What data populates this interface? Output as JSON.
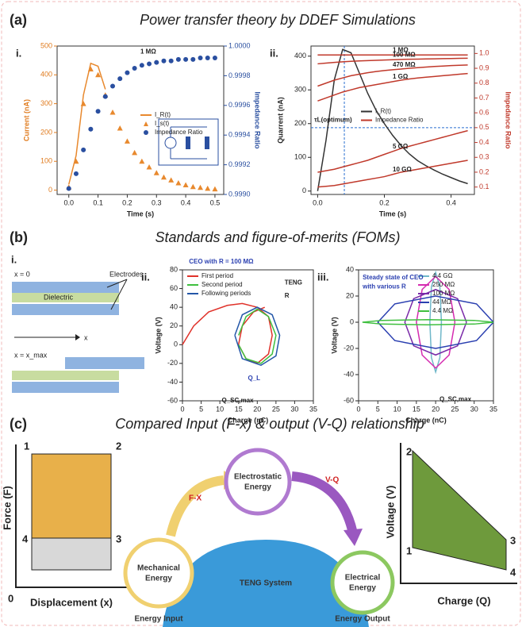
{
  "panels": [
    {
      "label": "(a)",
      "title": "Power transfer theory by DDEF Simulations"
    },
    {
      "label": "(b)",
      "title": "Standards and figure-of-merits (FOMs)"
    },
    {
      "label": "(c)",
      "title": "Compared Input (F-x) & output (V-Q) relationship"
    }
  ],
  "chart_data": [
    {
      "type": "line",
      "panel_label": "i.",
      "xlabel": "Time (s)",
      "ylabel": "Current (nA)",
      "y2label": "Impedance Ratio",
      "ycolor": "#e07b1e",
      "y2color": "#2a4fa0",
      "legend": "center right",
      "xlim": [
        -0.04,
        0.53
      ],
      "xticks": [
        {
          "value": 0,
          "label": "0.0"
        },
        0.1,
        0.2,
        0.3,
        0.4,
        0.5
      ],
      "ylim": [
        -15,
        500
      ],
      "yticks": [
        0,
        100,
        200,
        300,
        400,
        500
      ],
      "y2lim": [
        0.999,
        1
      ],
      "y2ticks": [
        {
          "value": 0.999,
          "label": "0.9990"
        },
        0.9992,
        0.9994,
        0.9996,
        0.9998,
        {
          "value": 1,
          "label": "1.0000"
        }
      ],
      "x": [
        0,
        0.025,
        0.05,
        0.075,
        0.1,
        0.125,
        0.15,
        0.175,
        0.2,
        0.225,
        0.25,
        0.275,
        0.3,
        0.325,
        0.35,
        0.375,
        0.4,
        0.425,
        0.45,
        0.475,
        0.5
      ],
      "series": [
        {
          "name": "I_R(t)",
          "color": "#e8892e",
          "marker": "line",
          "values": [
            20,
            120,
            330,
            440,
            430,
            350,
            null,
            null,
            null,
            null,
            null,
            null,
            null,
            null,
            null,
            null,
            null,
            null,
            null,
            null,
            null
          ]
        },
        {
          "name": "I_s(t)",
          "color": "#e8892e",
          "marker": "triangle",
          "values": [
            10,
            100,
            300,
            420,
            400,
            330,
            270,
            215,
            170,
            130,
            100,
            80,
            60,
            45,
            35,
            25,
            18,
            12,
            9,
            6,
            4
          ]
        },
        {
          "name": "Impedance Ratio",
          "color": "#2a4fa0",
          "marker": "circle",
          "axis": "y2",
          "values": [
            0.99904,
            0.99914,
            0.9993,
            0.99944,
            0.99956,
            0.99966,
            0.99973,
            0.99978,
            0.99982,
            0.99985,
            0.99987,
            0.99988,
            0.99989,
            0.9999,
            0.9999,
            0.99991,
            0.99991,
            0.99991,
            0.99992,
            0.99992,
            0.99992
          ]
        }
      ],
      "annotations": [
        "1 MΩ"
      ]
    },
    {
      "type": "line",
      "panel_label": "ii.",
      "xlabel": "Time (s)",
      "ylabel": "Quarrent (nA)",
      "y2label": "Impedance Ratio",
      "ycolor": "#222222",
      "y2color": "#c0392b",
      "legend": "center",
      "legend_extra": "Impedance Ratio",
      "xlim": [
        -0.02,
        0.47
      ],
      "xticks": [
        {
          "value": 0,
          "label": "0.0"
        },
        0.2,
        0.4
      ],
      "ylim": [
        -10,
        430
      ],
      "yticks": [
        0,
        100,
        200,
        300,
        400
      ],
      "y2lim": [
        0.05,
        1.05
      ],
      "y2ticks": [
        0.1,
        0.2,
        0.3,
        0.4,
        0.5,
        0.6,
        0.7,
        0.8,
        0.9,
        {
          "value": 1,
          "label": "1.0"
        }
      ],
      "x": [
        0,
        0.025,
        0.05,
        0.075,
        0.1,
        0.125,
        0.15,
        0.175,
        0.2,
        0.225,
        0.25,
        0.275,
        0.3,
        0.325,
        0.35,
        0.375,
        0.4,
        0.425,
        0.45
      ],
      "reference_lines": {
        "x": 0.08,
        "y2": 0.5
      },
      "series": [
        {
          "name": "I_R(t)",
          "color": "#333333",
          "marker": "line",
          "values": [
            0,
            150,
            330,
            420,
            410,
            350,
            290,
            240,
            200,
            165,
            135,
            110,
            90,
            75,
            62,
            50,
            40,
            30,
            22
          ]
        },
        {
          "label": "1 MΩ",
          "color": "#c0392b",
          "marker": "line",
          "axis": "y2",
          "values": [
            0.99,
            0.99,
            0.99,
            0.99,
            0.99,
            0.99,
            0.99,
            0.99,
            0.99,
            0.99,
            0.99,
            0.99,
            0.99,
            0.99,
            0.99,
            0.99,
            0.99,
            0.99,
            0.99
          ]
        },
        {
          "label": "100 MΩ",
          "color": "#c0392b",
          "marker": "line",
          "axis": "y2",
          "values": [
            0.93,
            0.935,
            0.94,
            0.944,
            0.947,
            0.95,
            0.952,
            0.954,
            0.956,
            0.958,
            0.96,
            0.961,
            0.962,
            0.963,
            0.964,
            0.965,
            0.966,
            0.967,
            0.968
          ]
        },
        {
          "label": "470 MΩ",
          "color": "#c0392b",
          "marker": "line",
          "axis": "y2",
          "values": [
            0.78,
            0.8,
            0.82,
            0.835,
            0.85,
            0.86,
            0.87,
            0.878,
            0.885,
            0.89,
            0.895,
            0.9,
            0.904,
            0.908,
            0.912,
            0.915,
            0.918,
            0.92,
            0.922
          ]
        },
        {
          "label": "1 GΩ",
          "color": "#c0392b",
          "marker": "line",
          "axis": "y2",
          "values": [
            0.68,
            0.7,
            0.72,
            0.74,
            0.755,
            0.77,
            0.78,
            0.79,
            0.8,
            0.81,
            0.82,
            0.828,
            0.835,
            0.84,
            0.845,
            0.85,
            0.855,
            0.86,
            0.865
          ]
        },
        {
          "label": "5 GΩ",
          "color": "#c0392b",
          "marker": "line",
          "axis": "y2",
          "values": [
            0.2,
            0.21,
            0.22,
            0.235,
            0.25,
            0.265,
            0.28,
            0.3,
            0.32,
            0.34,
            0.36,
            0.375,
            0.39,
            0.405,
            0.42,
            0.435,
            0.45,
            0.465,
            0.48
          ]
        },
        {
          "label": "10 GΩ",
          "color": "#c0392b",
          "marker": "line",
          "axis": "y2",
          "values": [
            0.1,
            0.105,
            0.11,
            0.12,
            0.13,
            0.14,
            0.15,
            0.16,
            0.17,
            0.185,
            0.2,
            0.21,
            0.22,
            0.23,
            0.24,
            0.25,
            0.26,
            0.27,
            0.28
          ]
        }
      ],
      "annotations": [
        "τL(optimum)"
      ]
    },
    {
      "type": "line",
      "panel_label": "ii.",
      "xlabel": "Charge (nC)",
      "ylabel": "Voltage (V)",
      "ycolor": "#222222",
      "legend": "upper left",
      "xlim": [
        0,
        35
      ],
      "xticks": [
        0,
        5,
        10,
        15,
        20,
        25,
        30,
        35
      ],
      "ylim": [
        -60,
        80
      ],
      "yticks": [
        -60,
        -40,
        -20,
        0,
        20,
        40,
        60,
        80
      ],
      "series": [
        {
          "name": "First period",
          "color": "#e0322a",
          "marker": "line",
          "x": [
            0,
            3,
            7,
            12,
            16,
            20,
            23,
            24,
            23,
            20,
            17,
            15,
            16,
            19,
            22
          ],
          "values": [
            0,
            20,
            35,
            42,
            44,
            40,
            30,
            10,
            -10,
            -20,
            -15,
            0,
            20,
            35,
            40
          ]
        },
        {
          "name": "Second period",
          "color": "#3fbf3f",
          "marker": "line",
          "x": [
            15,
            17,
            20,
            23,
            25,
            24,
            21,
            17,
            15
          ],
          "values": [
            10,
            30,
            38,
            30,
            10,
            -10,
            -20,
            -15,
            0
          ]
        },
        {
          "name": "Following periods",
          "color": "#2457a8",
          "marker": "line",
          "x": [
            14,
            16,
            20,
            24,
            26,
            25,
            21,
            16,
            14
          ],
          "values": [
            10,
            32,
            40,
            32,
            10,
            -12,
            -22,
            -15,
            10
          ]
        }
      ],
      "annotations": [
        "CEO with R = 100 MΩ",
        "Q_L",
        "Q_SC,max",
        "TENG",
        "R"
      ]
    },
    {
      "type": "line",
      "panel_label": "iii.",
      "xlabel": "Charge (nC)",
      "ylabel": "Voltage (V)",
      "ycolor": "#222222",
      "legend": "upper right",
      "xlim": [
        0,
        35
      ],
      "xticks": [
        0,
        5,
        10,
        15,
        20,
        25,
        30,
        35
      ],
      "ylim": [
        -60,
        40
      ],
      "yticks": [
        -60,
        -40,
        -20,
        0,
        20,
        40
      ],
      "series": [
        {
          "name": "4.4 GΩ",
          "color": "#6fb7c9",
          "marker": "line",
          "x": [
            21.5,
            21.1,
            20,
            18.9,
            18.5,
            18.9,
            20,
            21.1,
            21.5
          ],
          "values": [
            0,
            27,
            38,
            27,
            0,
            -27,
            -38,
            -27,
            0
          ]
        },
        {
          "name": "250 MΩ",
          "color": "#d52bb0",
          "marker": "line",
          "x": [
            25,
            23.5,
            20,
            16.5,
            15,
            16.5,
            20,
            23.5,
            25
          ],
          "values": [
            0,
            25,
            35,
            25,
            0,
            -25,
            -35,
            -25,
            0
          ]
        },
        {
          "name": "100 MΩ",
          "color": "#7a2aa8",
          "marker": "line",
          "x": [
            28,
            25.7,
            20,
            14.3,
            12,
            14.3,
            20,
            25.7,
            28
          ],
          "values": [
            0,
            18,
            25,
            18,
            0,
            -18,
            -25,
            -18,
            0
          ]
        },
        {
          "name": "44 MΩ",
          "color": "#2a3fb0",
          "marker": "line",
          "x": [
            35,
            30.6,
            20,
            9.4,
            5,
            9.4,
            20,
            30.6,
            35
          ],
          "values": [
            0,
            14,
            20,
            14,
            0,
            -14,
            -20,
            -14,
            0
          ]
        },
        {
          "name": "4.4 MΩ",
          "color": "#3fbf3f",
          "marker": "line",
          "x": [
            35,
            30,
            18,
            6,
            1,
            6,
            18,
            30,
            35
          ],
          "values": [
            0,
            1.4,
            2,
            1.4,
            0,
            -1.4,
            -2,
            -1.4,
            0
          ]
        }
      ],
      "annotations": [
        "Steady state of CEO",
        "with various R",
        "Q_SC,max"
      ]
    }
  ],
  "diagram_b": {
    "label": "i.",
    "start": "x = 0",
    "electrodes": "Electrodes",
    "dielectric": "Dielectric",
    "axis": "x",
    "end": "x = x_max"
  },
  "diagram_c": {
    "fx": {
      "ylabel": "Force (F)",
      "xlabel": "Displacement (x)",
      "origin": "0",
      "corners": [
        "1",
        "2",
        "3",
        "4"
      ]
    },
    "vq": {
      "ylabel": "Voltage (V)",
      "xlabel": "Charge (Q)",
      "corners": [
        "1",
        "2",
        "3",
        "4"
      ]
    },
    "flow": {
      "input_arrow": "F-X",
      "output_arrow": "V-Q",
      "mechanical": [
        "Mechanical",
        "Energy"
      ],
      "electrostatic": [
        "Electrostatic",
        "Energy"
      ],
      "electrical": [
        "Electrical",
        "Energy"
      ],
      "system": "TENG System",
      "input": "Energy Input",
      "output": "Energy Output"
    }
  }
}
